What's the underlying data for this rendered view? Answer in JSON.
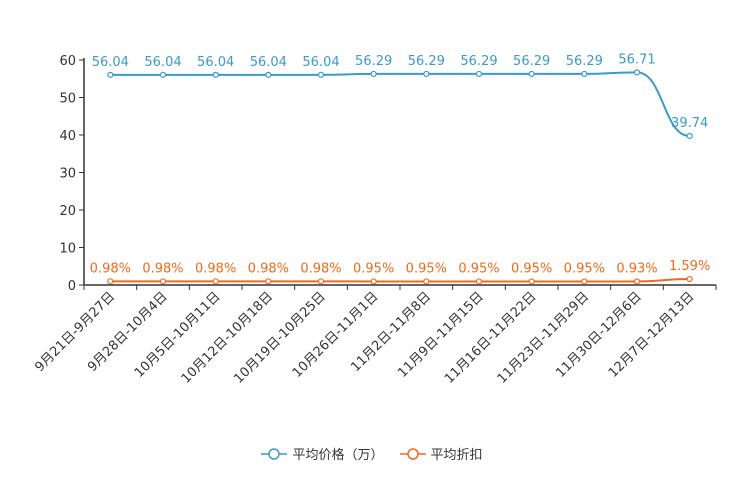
{
  "chart_data": {
    "type": "line",
    "categories": [
      "9月21日-9月27日",
      "9月28日-10月4日",
      "10月5日-10月11日",
      "10月12日-10月18日",
      "10月19日-10月25日",
      "10月26日-11月1日",
      "11月2日-11月8日",
      "11月9日-11月15日",
      "11月16日-11月22日",
      "11月23日-11月29日",
      "11月30日-12月6日",
      "12月7日-12月13日"
    ],
    "series": [
      {
        "name": "平均价格（万）",
        "color": "#3a9ac9",
        "values": [
          56.04,
          56.04,
          56.04,
          56.04,
          56.04,
          56.29,
          56.29,
          56.29,
          56.29,
          56.29,
          56.71,
          39.74
        ],
        "labels": [
          "56.04",
          "56.04",
          "56.04",
          "56.04",
          "56.04",
          "56.29",
          "56.29",
          "56.29",
          "56.29",
          "56.29",
          "56.71",
          "39.74"
        ]
      },
      {
        "name": "平均折扣",
        "color": "#f06a1a",
        "values": [
          0.98,
          0.98,
          0.98,
          0.98,
          0.98,
          0.95,
          0.95,
          0.95,
          0.95,
          0.95,
          0.93,
          1.59
        ],
        "labels": [
          "0.98%",
          "0.98%",
          "0.98%",
          "0.98%",
          "0.98%",
          "0.95%",
          "0.95%",
          "0.95%",
          "0.95%",
          "0.95%",
          "0.93%",
          "1.59%"
        ]
      }
    ],
    "y_ticks": [
      "0",
      "10",
      "20",
      "30",
      "40",
      "50",
      "60"
    ],
    "ylim": [
      0,
      60
    ],
    "legend_position": "bottom-center",
    "grid": false
  }
}
